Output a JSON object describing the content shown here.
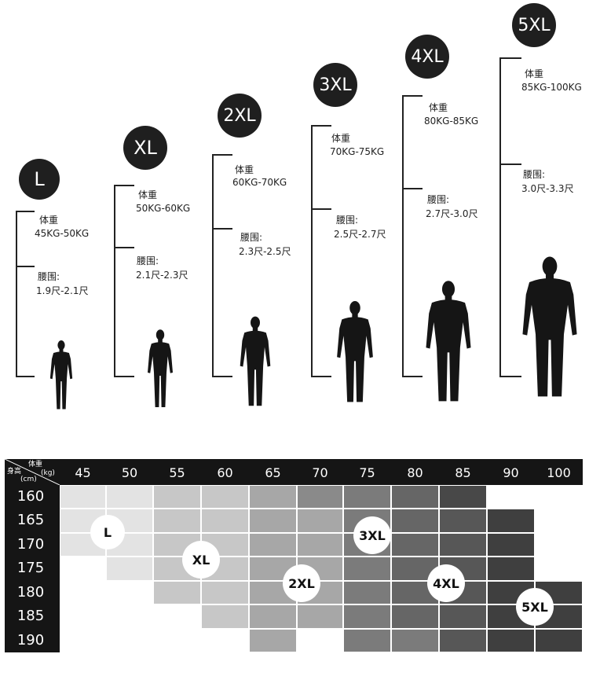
{
  "sizes": [
    {
      "name": "L",
      "weight_label": "体重",
      "weight": "45KG-50KG",
      "waist_label": "腰围:",
      "waist": "1.9尺-2.1尺"
    },
    {
      "name": "XL",
      "weight_label": "体重",
      "weight": "50KG-60KG",
      "waist_label": "腰围:",
      "waist": "2.1尺-2.3尺"
    },
    {
      "name": "2XL",
      "weight_label": "体重",
      "weight": "60KG-70KG",
      "waist_label": "腰围:",
      "waist": "2.3尺-2.5尺"
    },
    {
      "name": "3XL",
      "weight_label": "体重",
      "weight": "70KG-75KG",
      "waist_label": "腰围:",
      "waist": "2.5尺-2.7尺"
    },
    {
      "name": "4XL",
      "weight_label": "体重",
      "weight": "80KG-85KG",
      "waist_label": "腰围:",
      "waist": "2.7尺-3.0尺"
    },
    {
      "name": "5XL",
      "weight_label": "体重",
      "weight": "85KG-100KG",
      "waist_label": "腰围:",
      "waist": "3.0尺-3.3尺"
    }
  ],
  "table": {
    "corner": {
      "weight": "体重",
      "height": "身高",
      "kg": "(kg)",
      "cm": "(cm)"
    },
    "weights": [
      "45",
      "50",
      "55",
      "60",
      "65",
      "70",
      "75",
      "80",
      "85",
      "90",
      "100"
    ],
    "heights": [
      "160",
      "165",
      "170",
      "175",
      "180",
      "185",
      "190"
    ],
    "zones": [
      "L",
      "XL",
      "3XL",
      "2XL",
      "4XL",
      "5XL"
    ]
  }
}
